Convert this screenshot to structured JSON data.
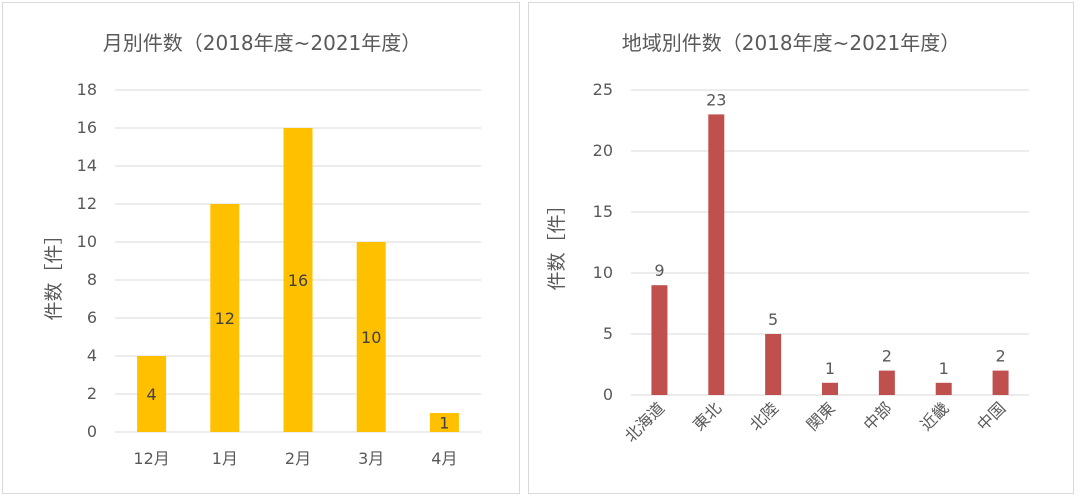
{
  "chart_data": [
    {
      "type": "bar",
      "title": "月別件数（2018年度~2021年度）",
      "ylabel": "件数［件］",
      "xlabel": "",
      "categories": [
        "12月",
        "1月",
        "2月",
        "3月",
        "4月"
      ],
      "values": [
        4,
        12,
        16,
        10,
        1
      ],
      "ylim": [
        0,
        18
      ],
      "yticks": [
        0,
        2,
        4,
        6,
        8,
        10,
        12,
        14,
        16,
        18
      ],
      "grid": true,
      "data_labels": "inside",
      "color": "#FFC000"
    },
    {
      "type": "bar",
      "title": "地域別件数（2018年度~2021年度）",
      "ylabel": "件数［件］",
      "xlabel": "",
      "categories": [
        "北海道",
        "東北",
        "北陸",
        "関東",
        "中部",
        "近畿",
        "中国"
      ],
      "values": [
        9,
        23,
        5,
        1,
        2,
        1,
        2
      ],
      "ylim": [
        0,
        25
      ],
      "yticks": [
        0,
        5,
        10,
        15,
        20,
        25
      ],
      "grid": true,
      "data_labels": "above",
      "color": "#C0504D"
    }
  ]
}
